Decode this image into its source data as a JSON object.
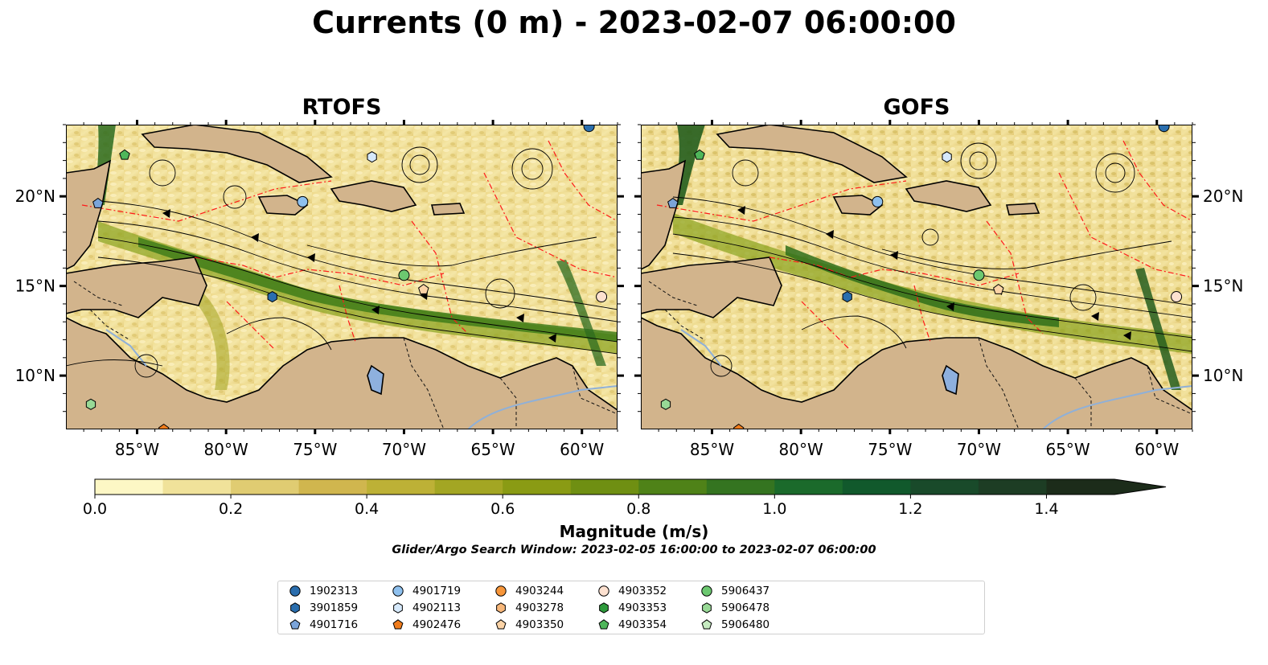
{
  "figure": {
    "title": "Currents (0 m) - 2023-02-07 06:00:00",
    "panels": [
      {
        "id": "rtofs",
        "title": "RTOFS"
      },
      {
        "id": "gofs",
        "title": "GOFS"
      }
    ],
    "lon_ticks": [
      "85°W",
      "80°W",
      "75°W",
      "70°W",
      "65°W",
      "60°W"
    ],
    "lat_ticks": [
      "20°N",
      "15°N",
      "10°N"
    ],
    "extent": {
      "lon_min": -89.0,
      "lon_max": -58.0,
      "lat_min": 7.0,
      "lat_max": 24.0
    }
  },
  "colorbar": {
    "label": "Magnitude (m/s)",
    "ticks": [
      "0.0",
      "0.2",
      "0.4",
      "0.6",
      "0.8",
      "1.0",
      "1.2",
      "1.4"
    ],
    "min": 0.0,
    "max": 1.5,
    "extend": "max",
    "colors": [
      "#fdf7c5",
      "#f0e29a",
      "#e0cc72",
      "#d0b64e",
      "#bdb136",
      "#a3a623",
      "#8a9b14",
      "#6f8f12",
      "#4f8218",
      "#347420",
      "#1b6a2b",
      "#11592c",
      "#194a2a",
      "#1d3d24",
      "#1c2c1a"
    ]
  },
  "search_window": "Glider/Argo Search Window: 2023-02-05 16:00:00 to 2023-02-07 06:00:00",
  "legend": {
    "items": [
      {
        "label": "1902313",
        "marker": "circle",
        "color": "#2a6eae"
      },
      {
        "label": "3901859",
        "marker": "hexagon",
        "color": "#2a6eae"
      },
      {
        "label": "4901716",
        "marker": "pentagon",
        "color": "#7ba4d9"
      },
      {
        "label": "4901719",
        "marker": "circle",
        "color": "#8ec0ee"
      },
      {
        "label": "4902113",
        "marker": "hexagon",
        "color": "#d6e9fb"
      },
      {
        "label": "4902476",
        "marker": "pentagon",
        "color": "#f07c1c"
      },
      {
        "label": "4903244",
        "marker": "circle",
        "color": "#f7963a"
      },
      {
        "label": "4903278",
        "marker": "hexagon",
        "color": "#f7b77a"
      },
      {
        "label": "4903350",
        "marker": "pentagon",
        "color": "#fbd3a6"
      },
      {
        "label": "4903352",
        "marker": "circle",
        "color": "#fde1d0"
      },
      {
        "label": "4903353",
        "marker": "hexagon",
        "color": "#2e9a3c"
      },
      {
        "label": "4903354",
        "marker": "pentagon",
        "color": "#4fb65a"
      },
      {
        "label": "5906437",
        "marker": "circle",
        "color": "#6cc870"
      },
      {
        "label": "5906478",
        "marker": "hexagon",
        "color": "#98d996"
      },
      {
        "label": "5906480",
        "marker": "pentagon",
        "color": "#c6ebc1"
      }
    ]
  },
  "floats": [
    {
      "id": "1902313",
      "lon": -59.6,
      "lat": 23.9
    },
    {
      "id": "3901859",
      "lon": -77.4,
      "lat": 14.4
    },
    {
      "id": "4901716",
      "lon": -87.2,
      "lat": 19.6
    },
    {
      "id": "4901719",
      "lon": -75.7,
      "lat": 19.7
    },
    {
      "id": "4902113",
      "lon": -71.8,
      "lat": 22.2
    },
    {
      "id": "4902476",
      "lon": -83.5,
      "lat": 7.0
    },
    {
      "id": "4903350",
      "lon": -68.9,
      "lat": 14.8
    },
    {
      "id": "4903352",
      "lon": -58.9,
      "lat": 14.4
    },
    {
      "id": "4903354",
      "lon": -85.7,
      "lat": 22.3
    },
    {
      "id": "5906437",
      "lon": -70.0,
      "lat": 15.6
    },
    {
      "id": "5906478",
      "lon": -87.6,
      "lat": 8.4
    }
  ]
}
